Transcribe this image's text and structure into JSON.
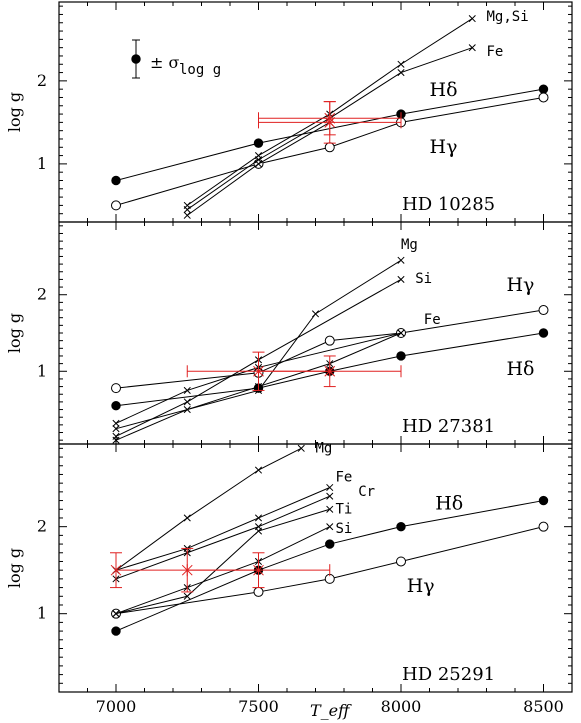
{
  "xlabel": "T_eff",
  "ylabel": "log g",
  "x_ticks": [
    7000,
    7500,
    8000,
    8500
  ],
  "y_ticks": [
    1,
    2
  ],
  "legend": {
    "text": "± σ",
    "sub": "log g"
  },
  "colors": {
    "error_bars": "#e02020",
    "lines": "#000000"
  },
  "chart_data": [
    {
      "type": "line",
      "star_label": "HD  10285",
      "xlim": [
        6800,
        8600
      ],
      "ylim": [
        0.3,
        2.95
      ],
      "series": [
        {
          "name": "Hδ",
          "marker": "filled",
          "x": [
            7000,
            7500,
            8000,
            8500
          ],
          "y": [
            0.8,
            1.25,
            1.6,
            1.9
          ]
        },
        {
          "name": "Hγ",
          "marker": "open",
          "x": [
            7000,
            7500,
            7750,
            8000,
            8500
          ],
          "y": [
            0.5,
            1.0,
            1.2,
            1.5,
            1.8
          ]
        },
        {
          "name": "Mg,Si",
          "marker": "cross",
          "x": [
            7250,
            7500,
            7750,
            8000,
            8250
          ],
          "y": [
            0.5,
            1.1,
            1.6,
            2.2,
            2.75
          ]
        },
        {
          "name": "Fe",
          "marker": "cross",
          "x": [
            7250,
            7500,
            7750,
            8000,
            8250
          ],
          "y": [
            0.45,
            1.05,
            1.55,
            2.1,
            2.4
          ]
        },
        {
          "name": "",
          "marker": "cross",
          "x": [
            7250,
            7500,
            7750
          ],
          "y": [
            0.38,
            1.0,
            1.5
          ]
        }
      ],
      "labels": [
        {
          "text": "Mg,Si",
          "x": 8300,
          "y": 2.72,
          "cls": "line-label"
        },
        {
          "text": "Fe",
          "x": 8300,
          "y": 2.3,
          "cls": "line-label"
        },
        {
          "text": "Hδ",
          "x": 8100,
          "y": 1.82,
          "cls": "h-label"
        },
        {
          "text": "Hγ",
          "x": 8100,
          "y": 1.13,
          "cls": "h-label"
        }
      ],
      "error_points": [
        {
          "x": 7750,
          "y": 1.5,
          "xerr": 250,
          "yerr": 0.25
        },
        {
          "x": 7750,
          "y": 1.55,
          "xerr": 250,
          "yerr": 0.2
        }
      ]
    },
    {
      "type": "line",
      "star_label": "HD  27381",
      "xlim": [
        6800,
        8600
      ],
      "ylim": [
        0.05,
        2.95
      ],
      "series": [
        {
          "name": "Hδ",
          "marker": "filled",
          "x": [
            7000,
            7500,
            7750,
            8000,
            8500
          ],
          "y": [
            0.55,
            0.78,
            1.0,
            1.2,
            1.5
          ]
        },
        {
          "name": "Hγ",
          "marker": "open",
          "x": [
            7000,
            7500,
            7750,
            8000,
            8500
          ],
          "y": [
            0.78,
            0.98,
            1.4,
            1.5,
            1.8
          ]
        },
        {
          "name": "Mg",
          "marker": "cross",
          "x": [
            7000,
            7500,
            7700,
            8000
          ],
          "y": [
            0.25,
            0.75,
            1.75,
            2.45
          ]
        },
        {
          "name": "Si",
          "marker": "cross",
          "x": [
            7000,
            7250,
            7500,
            8000
          ],
          "y": [
            0.15,
            0.6,
            1.15,
            2.2
          ]
        },
        {
          "name": "Fe",
          "marker": "cross",
          "x": [
            7000,
            7250,
            7500,
            8000
          ],
          "y": [
            0.32,
            0.75,
            1.05,
            1.5
          ]
        },
        {
          "name": "",
          "marker": "cross",
          "x": [
            7000,
            7250,
            7500,
            7750,
            8000
          ],
          "y": [
            0.1,
            0.5,
            0.8,
            1.1,
            1.5
          ]
        }
      ],
      "labels": [
        {
          "text": "Mg",
          "x": 8000,
          "y": 2.6,
          "cls": "line-label"
        },
        {
          "text": "Si",
          "x": 8050,
          "y": 2.15,
          "cls": "line-label"
        },
        {
          "text": "Fe",
          "x": 8080,
          "y": 1.62,
          "cls": "line-label"
        },
        {
          "text": "Hγ",
          "x": 8370,
          "y": 2.05,
          "cls": "h-label"
        },
        {
          "text": "Hδ",
          "x": 8370,
          "y": 0.95,
          "cls": "h-label"
        }
      ],
      "error_points": [
        {
          "x": 7500,
          "y": 1.0,
          "xerr": 250,
          "yerr": 0.25
        },
        {
          "x": 7750,
          "y": 1.0,
          "xerr": 250,
          "yerr": 0.2
        }
      ]
    },
    {
      "type": "line",
      "star_label": "HD  25291",
      "xlim": [
        6800,
        8600
      ],
      "ylim": [
        0.1,
        2.95
      ],
      "series": [
        {
          "name": "Hδ",
          "marker": "filled",
          "x": [
            7000,
            7500,
            7750,
            8000,
            8500
          ],
          "y": [
            0.8,
            1.5,
            1.8,
            2.0,
            2.3
          ]
        },
        {
          "name": "Hγ",
          "marker": "open",
          "x": [
            7000,
            7500,
            7750,
            8000,
            8500
          ],
          "y": [
            1.0,
            1.25,
            1.4,
            1.6,
            2.0
          ]
        },
        {
          "name": "Mg",
          "marker": "cross",
          "x": [
            7000,
            7250,
            7500,
            7650
          ],
          "y": [
            1.5,
            2.1,
            2.65,
            2.9
          ]
        },
        {
          "name": "Fe",
          "marker": "cross",
          "x": [
            7000,
            7250,
            7500,
            7750
          ],
          "y": [
            1.5,
            1.75,
            2.1,
            2.45
          ]
        },
        {
          "name": "Cr",
          "marker": "cross",
          "x": [
            7000,
            7250,
            7500,
            7750
          ],
          "y": [
            1.4,
            1.7,
            2.0,
            2.35
          ]
        },
        {
          "name": "Ti",
          "marker": "cross",
          "x": [
            7000,
            7250,
            7500,
            7750
          ],
          "y": [
            1.0,
            1.2,
            1.95,
            2.2
          ]
        },
        {
          "name": "Si",
          "marker": "cross",
          "x": [
            7000,
            7250,
            7500,
            7750
          ],
          "y": [
            1.0,
            1.3,
            1.6,
            2.0
          ]
        }
      ],
      "labels": [
        {
          "text": "Mg",
          "x": 7700,
          "y": 2.85,
          "cls": "line-label"
        },
        {
          "text": "Fe",
          "x": 7770,
          "y": 2.52,
          "cls": "line-label"
        },
        {
          "text": "Cr",
          "x": 7850,
          "y": 2.35,
          "cls": "line-label"
        },
        {
          "text": "Ti",
          "x": 7770,
          "y": 2.15,
          "cls": "line-label"
        },
        {
          "text": "Si",
          "x": 7770,
          "y": 1.93,
          "cls": "line-label"
        },
        {
          "text": "Hδ",
          "x": 8120,
          "y": 2.2,
          "cls": "h-label"
        },
        {
          "text": "Hγ",
          "x": 8020,
          "y": 1.25,
          "cls": "h-label"
        }
      ],
      "error_points": [
        {
          "x": 7000,
          "y": 1.5,
          "xerr": 0,
          "yerr": 0.2
        },
        {
          "x": 7250,
          "y": 1.5,
          "xerr": 250,
          "yerr": 0.25
        },
        {
          "x": 7500,
          "y": 1.5,
          "xerr": 250,
          "yerr": 0.2
        }
      ]
    }
  ]
}
